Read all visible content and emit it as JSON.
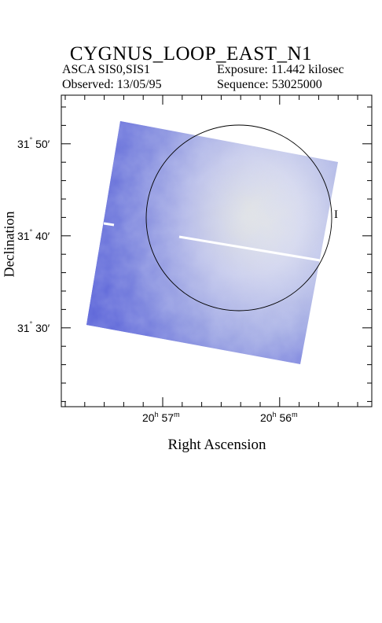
{
  "title": "CYGNUS_LOOP_EAST_N1",
  "info": {
    "instrument": "ASCA SIS0,SIS1",
    "exposure": "Exposure: 11.442 kilosec",
    "observed": "Observed: 13/05/95",
    "sequence": "Sequence: 53025000"
  },
  "chart_data": {
    "type": "heatmap",
    "title": "CYGNUS_LOOP_EAST_N1",
    "xlabel": "Right Ascension",
    "ylabel": "Declination",
    "x_ticks": [
      {
        "h": "20",
        "m": "57",
        "label_h": "h",
        "label_m": "m"
      },
      {
        "h": "20",
        "m": "56",
        "label_h": "h",
        "label_m": "m"
      }
    ],
    "y_ticks": [
      {
        "deg": "31",
        "min": "50",
        "label": "31° 50′"
      },
      {
        "deg": "31",
        "min": "40",
        "label": "31° 40′"
      },
      {
        "deg": "31",
        "min": "30",
        "label": "31° 30′"
      }
    ],
    "colors": {
      "low": "#5a62d8",
      "mid": "#a9b2e6",
      "high": "#f2f3e4",
      "circle": "#000000"
    },
    "marker_label": "I"
  }
}
